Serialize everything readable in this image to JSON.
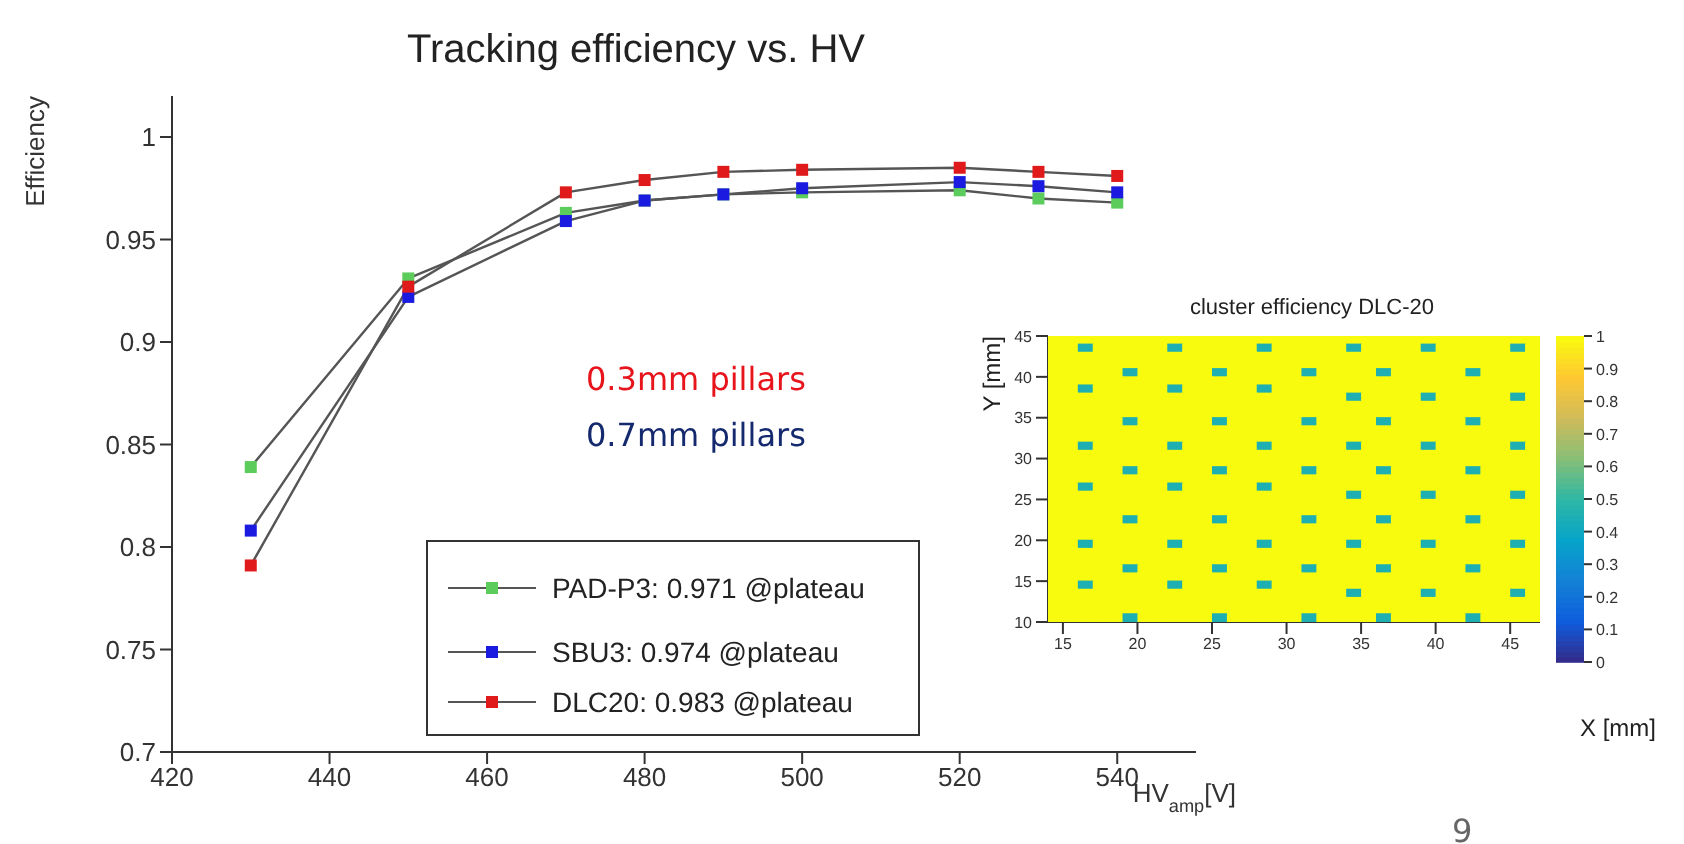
{
  "chart_data": [
    {
      "type": "line",
      "title": "Tracking efficiency vs. HV",
      "xlabel": "HV$_{amp}$[V]",
      "ylabel": "Efficiency",
      "x": [
        430,
        450,
        470,
        480,
        490,
        500,
        520,
        530,
        540
      ],
      "series": [
        {
          "name": "PAD-P3: 0.971 @plateau",
          "color": "#5ccc5c",
          "values": [
            0.839,
            0.931,
            0.963,
            0.969,
            0.972,
            0.973,
            0.974,
            0.97,
            0.968
          ]
        },
        {
          "name": "SBU3: 0.974 @plateau",
          "color": "#1a1ae0",
          "values": [
            0.808,
            0.922,
            0.959,
            0.969,
            0.972,
            0.975,
            0.978,
            0.976,
            0.973
          ]
        },
        {
          "name": "DLC20: 0.983 @plateau",
          "color": "#e01a1a",
          "values": [
            0.791,
            0.927,
            0.973,
            0.979,
            0.983,
            0.984,
            0.985,
            0.983,
            0.981
          ]
        }
      ],
      "xlim": [
        420,
        550
      ],
      "xticks": [
        420,
        440,
        460,
        480,
        500,
        520,
        540
      ],
      "ylim": [
        0.7,
        1.02
      ],
      "yticks": [
        0.7,
        0.75,
        0.8,
        0.85,
        0.9,
        0.95,
        1
      ],
      "marker": "square",
      "line_style": "solid",
      "legend": "bottom",
      "annotations": [
        "0.3mm pillars",
        "0.7mm pillars",
        "9"
      ]
    },
    {
      "type": "heatmap",
      "title": "cluster efficiency DLC-20",
      "xlabel": "X [mm]",
      "ylabel": "Y [mm]",
      "xlim": [
        14,
        47
      ],
      "xticks": [
        15,
        20,
        25,
        30,
        35,
        40,
        45
      ],
      "ylim": [
        10,
        45
      ],
      "yticks": [
        10,
        15,
        20,
        25,
        30,
        35,
        40,
        45
      ],
      "clim": [
        0,
        1
      ],
      "cticks": [
        0,
        0.1,
        0.2,
        0.3,
        0.4,
        0.5,
        0.6,
        0.7,
        0.8,
        0.9,
        1
      ],
      "cells": [
        [
          1,
          1,
          1,
          1,
          1,
          1,
          1,
          1,
          1,
          1,
          1,
          1,
          1,
          1,
          1,
          1,
          1,
          1,
          1,
          1,
          1,
          1,
          1,
          1,
          1,
          1,
          1,
          1,
          1,
          1,
          1,
          1,
          1
        ],
        [
          1,
          1,
          0.45,
          1,
          1,
          1,
          1,
          1,
          0.45,
          1,
          1,
          1,
          1,
          1,
          0.45,
          1,
          1,
          1,
          1,
          1,
          0.45,
          1,
          1,
          1,
          1,
          0.45,
          1,
          1,
          1,
          1,
          1,
          0.45,
          1
        ],
        [
          1,
          1,
          1,
          1,
          1,
          1,
          1,
          1,
          1,
          1,
          1,
          1,
          1,
          1,
          1,
          1,
          1,
          1,
          1,
          1,
          1,
          1,
          1,
          1,
          1,
          1,
          1,
          1,
          1,
          1,
          1,
          1,
          1
        ],
        [
          1,
          1,
          1,
          1,
          1,
          1,
          1,
          1,
          1,
          1,
          1,
          1,
          1,
          1,
          1,
          1,
          1,
          1,
          1,
          1,
          1,
          1,
          1,
          1,
          1,
          1,
          1,
          1,
          1,
          1,
          1,
          1,
          1
        ],
        [
          1,
          1,
          1,
          1,
          1,
          0.45,
          1,
          1,
          1,
          1,
          1,
          0.45,
          1,
          1,
          1,
          1,
          1,
          0.45,
          1,
          1,
          1,
          1,
          0.45,
          1,
          1,
          1,
          1,
          1,
          0.45,
          1,
          1,
          1,
          1
        ],
        [
          1,
          1,
          1,
          1,
          1,
          1,
          1,
          1,
          1,
          1,
          1,
          1,
          1,
          1,
          1,
          1,
          1,
          1,
          1,
          1,
          1,
          1,
          1,
          1,
          1,
          1,
          1,
          1,
          1,
          1,
          1,
          1,
          1
        ],
        [
          1,
          1,
          0.45,
          1,
          1,
          1,
          1,
          1,
          0.45,
          1,
          1,
          1,
          1,
          1,
          0.45,
          1,
          1,
          1,
          1,
          1,
          1,
          1,
          1,
          1,
          1,
          1,
          1,
          1,
          1,
          1,
          1,
          1,
          1
        ],
        [
          1,
          1,
          1,
          1,
          1,
          1,
          1,
          1,
          1,
          1,
          1,
          1,
          1,
          1,
          1,
          1,
          1,
          1,
          1,
          1,
          0.45,
          1,
          1,
          1,
          1,
          0.45,
          1,
          1,
          1,
          1,
          1,
          0.45,
          1
        ],
        [
          1,
          1,
          1,
          1,
          1,
          1,
          1,
          1,
          1,
          1,
          1,
          1,
          1,
          1,
          1,
          1,
          1,
          1,
          1,
          1,
          1,
          1,
          1,
          1,
          1,
          1,
          1,
          1,
          1,
          1,
          1,
          1,
          1
        ],
        [
          1,
          1,
          1,
          1,
          1,
          1,
          1,
          1,
          1,
          1,
          1,
          1,
          1,
          1,
          1,
          1,
          1,
          1,
          1,
          1,
          1,
          1,
          1,
          1,
          1,
          1,
          1,
          1,
          1,
          1,
          1,
          1,
          1
        ],
        [
          1,
          1,
          1,
          1,
          1,
          0.45,
          1,
          1,
          1,
          1,
          1,
          0.45,
          1,
          1,
          1,
          1,
          1,
          0.45,
          1,
          1,
          1,
          1,
          0.45,
          1,
          1,
          1,
          1,
          1,
          0.45,
          1,
          1,
          1,
          1
        ],
        [
          1,
          1,
          1,
          1,
          1,
          1,
          1,
          1,
          1,
          1,
          1,
          1,
          1,
          1,
          1,
          1,
          1,
          1,
          1,
          1,
          1,
          1,
          1,
          1,
          1,
          1,
          1,
          1,
          1,
          1,
          1,
          1,
          1
        ],
        [
          1,
          1,
          1,
          1,
          1,
          1,
          1,
          1,
          1,
          1,
          1,
          1,
          1,
          1,
          1,
          1,
          1,
          1,
          1,
          1,
          1,
          1,
          1,
          1,
          1,
          1,
          1,
          1,
          1,
          1,
          1,
          1,
          1
        ],
        [
          1,
          1,
          0.45,
          1,
          1,
          1,
          1,
          1,
          0.45,
          1,
          1,
          1,
          1,
          1,
          0.45,
          1,
          1,
          1,
          1,
          1,
          0.45,
          1,
          1,
          1,
          1,
          0.45,
          1,
          1,
          1,
          1,
          1,
          0.45,
          1
        ],
        [
          1,
          1,
          1,
          1,
          1,
          1,
          1,
          1,
          1,
          1,
          1,
          1,
          1,
          1,
          1,
          1,
          1,
          1,
          1,
          1,
          1,
          1,
          1,
          1,
          1,
          1,
          1,
          1,
          1,
          1,
          1,
          1,
          1
        ],
        [
          1,
          1,
          1,
          1,
          1,
          1,
          1,
          1,
          1,
          1,
          1,
          1,
          1,
          1,
          1,
          1,
          1,
          1,
          1,
          1,
          1,
          1,
          1,
          1,
          1,
          1,
          1,
          1,
          1,
          1,
          1,
          1,
          1
        ],
        [
          1,
          1,
          1,
          1,
          1,
          0.45,
          1,
          1,
          1,
          1,
          1,
          0.45,
          1,
          1,
          1,
          1,
          1,
          0.45,
          1,
          1,
          1,
          1,
          0.45,
          1,
          1,
          1,
          1,
          1,
          0.45,
          1,
          1,
          1,
          1
        ],
        [
          1,
          1,
          1,
          1,
          1,
          1,
          1,
          1,
          1,
          1,
          1,
          1,
          1,
          1,
          1,
          1,
          1,
          1,
          1,
          1,
          1,
          1,
          1,
          1,
          1,
          1,
          1,
          1,
          1,
          1,
          1,
          1,
          1
        ],
        [
          1,
          1,
          0.45,
          1,
          1,
          1,
          1,
          1,
          0.45,
          1,
          1,
          1,
          1,
          1,
          0.45,
          1,
          1,
          1,
          1,
          1,
          1,
          1,
          1,
          1,
          1,
          1,
          1,
          1,
          1,
          1,
          1,
          1,
          1
        ],
        [
          1,
          1,
          1,
          1,
          1,
          1,
          1,
          1,
          1,
          1,
          1,
          1,
          1,
          1,
          1,
          1,
          1,
          1,
          1,
          1,
          0.45,
          1,
          1,
          1,
          1,
          0.45,
          1,
          1,
          1,
          1,
          1,
          0.45,
          1
        ],
        [
          1,
          1,
          1,
          1,
          1,
          1,
          1,
          1,
          1,
          1,
          1,
          1,
          1,
          1,
          1,
          1,
          1,
          1,
          1,
          1,
          1,
          1,
          1,
          1,
          1,
          1,
          1,
          1,
          1,
          1,
          1,
          1,
          1
        ],
        [
          1,
          1,
          1,
          1,
          1,
          1,
          1,
          1,
          1,
          1,
          1,
          1,
          1,
          1,
          1,
          1,
          1,
          1,
          1,
          1,
          1,
          1,
          1,
          1,
          1,
          1,
          1,
          1,
          1,
          1,
          1,
          1,
          1
        ],
        [
          1,
          1,
          1,
          1,
          1,
          0.45,
          1,
          1,
          1,
          1,
          1,
          0.45,
          1,
          1,
          1,
          1,
          1,
          0.45,
          1,
          1,
          1,
          1,
          0.45,
          1,
          1,
          1,
          1,
          1,
          0.45,
          1,
          1,
          1,
          1
        ],
        [
          1,
          1,
          1,
          1,
          1,
          1,
          1,
          1,
          1,
          1,
          1,
          1,
          1,
          1,
          1,
          1,
          1,
          1,
          1,
          1,
          1,
          1,
          1,
          1,
          1,
          1,
          1,
          1,
          1,
          1,
          1,
          1,
          1
        ],
        [
          1,
          1,
          1,
          1,
          1,
          1,
          1,
          1,
          1,
          1,
          1,
          1,
          1,
          1,
          1,
          1,
          1,
          1,
          1,
          1,
          1,
          1,
          1,
          1,
          1,
          1,
          1,
          1,
          1,
          1,
          1,
          1,
          1
        ],
        [
          1,
          1,
          0.45,
          1,
          1,
          1,
          1,
          1,
          0.45,
          1,
          1,
          1,
          1,
          1,
          0.45,
          1,
          1,
          1,
          1,
          1,
          0.45,
          1,
          1,
          1,
          1,
          0.45,
          1,
          1,
          1,
          1,
          1,
          0.45,
          1
        ],
        [
          1,
          1,
          1,
          1,
          1,
          1,
          1,
          1,
          1,
          1,
          1,
          1,
          1,
          1,
          1,
          1,
          1,
          1,
          1,
          1,
          1,
          1,
          1,
          1,
          1,
          1,
          1,
          1,
          1,
          1,
          1,
          1,
          1
        ],
        [
          1,
          1,
          1,
          1,
          1,
          1,
          1,
          1,
          1,
          1,
          1,
          1,
          1,
          1,
          1,
          1,
          1,
          1,
          1,
          1,
          1,
          1,
          1,
          1,
          1,
          1,
          1,
          1,
          1,
          1,
          1,
          1,
          1
        ],
        [
          1,
          1,
          1,
          1,
          1,
          0.45,
          1,
          1,
          1,
          1,
          1,
          0.45,
          1,
          1,
          1,
          1,
          1,
          0.45,
          1,
          1,
          1,
          1,
          0.45,
          1,
          1,
          1,
          1,
          1,
          0.45,
          1,
          1,
          1,
          1
        ],
        [
          1,
          1,
          1,
          1,
          1,
          1,
          1,
          1,
          1,
          1,
          1,
          1,
          1,
          1,
          1,
          1,
          1,
          1,
          1,
          1,
          1,
          1,
          1,
          1,
          1,
          1,
          1,
          1,
          1,
          1,
          1,
          1,
          1
        ],
        [
          1,
          1,
          0.45,
          1,
          1,
          1,
          1,
          1,
          0.45,
          1,
          1,
          1,
          1,
          1,
          0.45,
          1,
          1,
          1,
          1,
          1,
          1,
          1,
          1,
          1,
          1,
          1,
          1,
          1,
          1,
          1,
          1,
          1,
          1
        ],
        [
          1,
          1,
          1,
          1,
          1,
          1,
          1,
          1,
          1,
          1,
          1,
          1,
          1,
          1,
          1,
          1,
          1,
          1,
          1,
          1,
          0.45,
          1,
          1,
          1,
          1,
          0.45,
          1,
          1,
          1,
          1,
          1,
          0.45,
          1
        ],
        [
          1,
          1,
          1,
          1,
          1,
          1,
          1,
          1,
          1,
          1,
          1,
          1,
          1,
          1,
          1,
          1,
          1,
          1,
          1,
          1,
          1,
          1,
          1,
          1,
          1,
          1,
          1,
          1,
          1,
          1,
          1,
          1,
          1
        ],
        [
          1,
          1,
          1,
          1,
          1,
          1,
          1,
          1,
          1,
          1,
          1,
          1,
          1,
          1,
          1,
          1,
          1,
          1,
          1,
          1,
          1,
          1,
          1,
          1,
          1,
          1,
          1,
          1,
          1,
          1,
          1,
          1,
          1
        ],
        [
          1,
          1,
          1,
          1,
          1,
          0.45,
          1,
          1,
          1,
          1,
          1,
          0.45,
          1,
          1,
          1,
          1,
          1,
          0.45,
          1,
          1,
          1,
          1,
          0.45,
          1,
          1,
          1,
          1,
          1,
          0.45,
          1,
          1,
          1,
          1
        ]
      ]
    }
  ]
}
